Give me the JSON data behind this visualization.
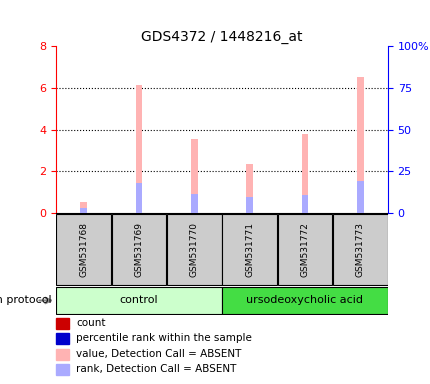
{
  "title": "GDS4372 / 1448216_at",
  "samples": [
    "GSM531768",
    "GSM531769",
    "GSM531770",
    "GSM531771",
    "GSM531772",
    "GSM531773"
  ],
  "pink_values": [
    0.55,
    6.15,
    3.55,
    2.35,
    3.8,
    6.5
  ],
  "blue_values": [
    0.25,
    1.45,
    0.9,
    0.75,
    0.85,
    1.55
  ],
  "bar_width": 0.12,
  "ylim_left": [
    0,
    8
  ],
  "ylim_right": [
    0,
    100
  ],
  "yticks_left": [
    0,
    2,
    4,
    6,
    8
  ],
  "yticks_right": [
    0,
    25,
    50,
    75,
    100
  ],
  "yticklabels_right": [
    "0",
    "25",
    "50",
    "75",
    "100%"
  ],
  "left_axis_color": "red",
  "right_axis_color": "blue",
  "background_color": "#ffffff",
  "sample_box_color": "#cccccc",
  "pink_color": "#ffb3b3",
  "blue_color": "#aaaaff",
  "ctrl_color": "#ccffcc",
  "urso_color": "#44dd44",
  "legend_items": [
    {
      "label": "count",
      "color": "#cc0000"
    },
    {
      "label": "percentile rank within the sample",
      "color": "#0000cc"
    },
    {
      "label": "value, Detection Call = ABSENT",
      "color": "#ffb3b3"
    },
    {
      "label": "rank, Detection Call = ABSENT",
      "color": "#aaaaff"
    }
  ],
  "growth_protocol_label": "growth protocol",
  "title_fontsize": 10,
  "tick_fontsize": 8,
  "legend_fontsize": 7.5,
  "sample_fontsize": 6.5,
  "group_fontsize": 8
}
